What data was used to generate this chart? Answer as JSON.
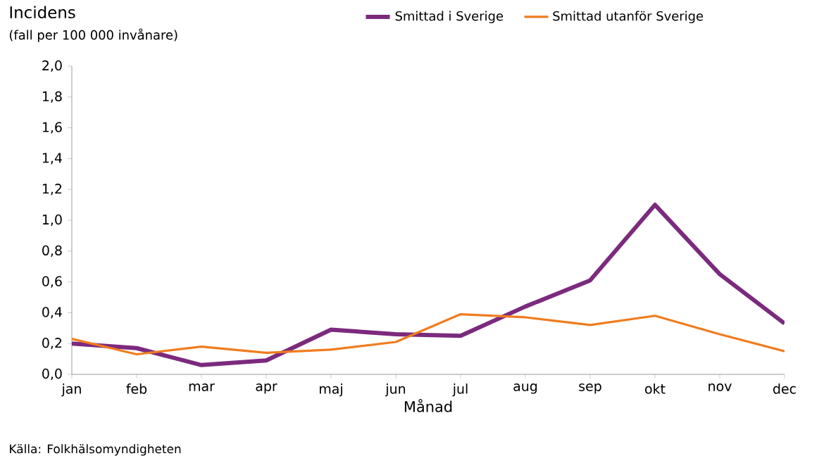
{
  "chart_data": {
    "type": "line",
    "title": "Incidens",
    "subtitle": "(fall per 100 000 invånare)",
    "xlabel": "Månad",
    "categories": [
      "jan",
      "feb",
      "mar",
      "apr",
      "maj",
      "jun",
      "jul",
      "aug",
      "sep",
      "okt",
      "nov",
      "dec"
    ],
    "series": [
      {
        "name": "Smittad i Sverige",
        "color": "#7b2a7e",
        "values": [
          0.2,
          0.17,
          0.06,
          0.09,
          0.29,
          0.26,
          0.25,
          0.44,
          0.61,
          1.1,
          0.65,
          0.33
        ]
      },
      {
        "name": "Smittad utanför Sverige",
        "color": "#f07c1e",
        "values": [
          0.23,
          0.13,
          0.18,
          0.14,
          0.16,
          0.21,
          0.39,
          0.37,
          0.32,
          0.38,
          0.26,
          0.15
        ]
      }
    ],
    "ylim": [
      0,
      2
    ],
    "yticks": [
      {
        "value": 0,
        "label": "0,0"
      },
      {
        "value": 0.2,
        "label": "0,2"
      },
      {
        "value": 0.4,
        "label": "0,4"
      },
      {
        "value": 0.6,
        "label": "0,6"
      },
      {
        "value": 0.8,
        "label": "0,8"
      },
      {
        "value": 1.0,
        "label": "1,0"
      },
      {
        "value": 1.2,
        "label": "1,2"
      },
      {
        "value": 1.4,
        "label": "1,4"
      },
      {
        "value": 1.6,
        "label": "1,6"
      },
      {
        "value": 1.8,
        "label": "1,8"
      },
      {
        "value": 2.0,
        "label": "2,0"
      }
    ],
    "legend": "top",
    "marker": "none",
    "line_style": "solid",
    "annotations": [
      "Källa: Folkhälsomyndigheten"
    ]
  }
}
